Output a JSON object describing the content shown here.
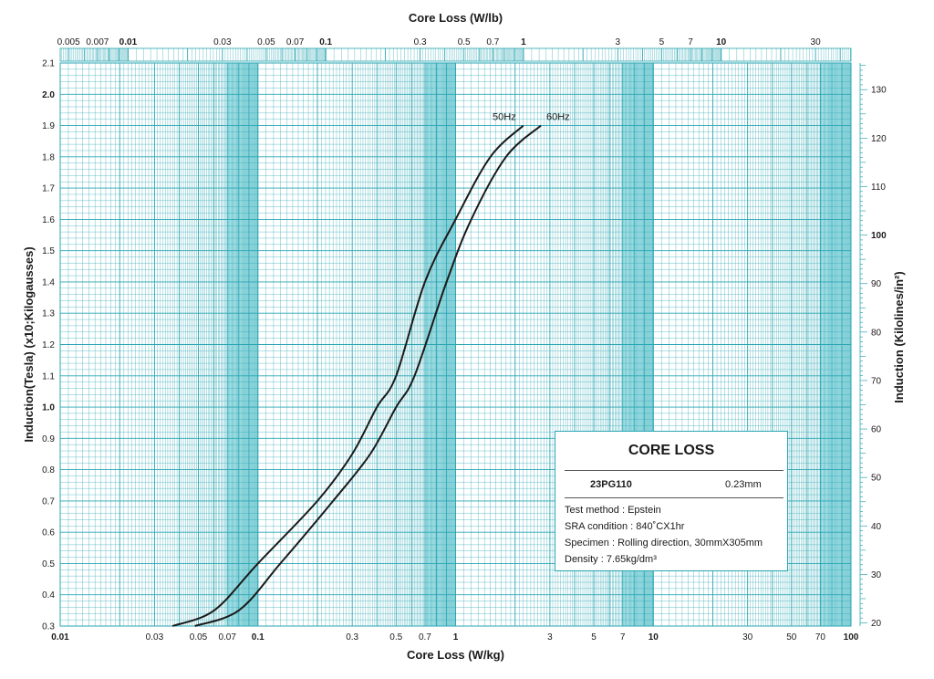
{
  "chart_data": {
    "type": "line",
    "title": "",
    "xlabel_bottom": "Core Loss (W/kg)",
    "xlabel_top": "Core Loss (W/lb)",
    "ylabel_left": "Induction(Tesla) (x10;Kilogausses)",
    "ylabel_right": "Induction (Kilolines/in²)",
    "x_scale": "log",
    "xlim": [
      0.01,
      100
    ],
    "ylim": [
      0.3,
      2.1
    ],
    "y2lim_kilolines_per_in2": [
      19.35,
      135.5
    ],
    "grid": true,
    "x_ticks_bottom": [
      {
        "value": 0.01,
        "label": "0.01",
        "bold": true
      },
      {
        "value": 0.03,
        "label": "0.03",
        "bold": false
      },
      {
        "value": 0.05,
        "label": "0.05",
        "bold": false
      },
      {
        "value": 0.07,
        "label": "0.07",
        "bold": false
      },
      {
        "value": 0.1,
        "label": "0.1",
        "bold": true
      },
      {
        "value": 0.3,
        "label": "0.3",
        "bold": false
      },
      {
        "value": 0.5,
        "label": "0.5",
        "bold": false
      },
      {
        "value": 0.7,
        "label": "0.7",
        "bold": false
      },
      {
        "value": 1,
        "label": "1",
        "bold": true
      },
      {
        "value": 3,
        "label": "3",
        "bold": false
      },
      {
        "value": 5,
        "label": "5",
        "bold": false
      },
      {
        "value": 7,
        "label": "7",
        "bold": false
      },
      {
        "value": 10,
        "label": "10",
        "bold": true
      },
      {
        "value": 30,
        "label": "30",
        "bold": false
      },
      {
        "value": 50,
        "label": "50",
        "bold": false
      },
      {
        "value": 70,
        "label": "70",
        "bold": false
      },
      {
        "value": 100,
        "label": "100",
        "bold": true
      }
    ],
    "x_ticks_top": [
      {
        "value": 0.005,
        "label": "0.005",
        "bold": false
      },
      {
        "value": 0.007,
        "label": "0.007",
        "bold": false
      },
      {
        "value": 0.01,
        "label": "0.01",
        "bold": true
      },
      {
        "value": 0.03,
        "label": "0.03",
        "bold": false
      },
      {
        "value": 0.05,
        "label": "0.05",
        "bold": false
      },
      {
        "value": 0.07,
        "label": "0.07",
        "bold": false
      },
      {
        "value": 0.1,
        "label": "0.1",
        "bold": true
      },
      {
        "value": 0.3,
        "label": "0.3",
        "bold": false
      },
      {
        "value": 0.5,
        "label": "0.5",
        "bold": false
      },
      {
        "value": 0.7,
        "label": "0.7",
        "bold": false
      },
      {
        "value": 1,
        "label": "1",
        "bold": true
      },
      {
        "value": 3,
        "label": "3",
        "bold": false
      },
      {
        "value": 5,
        "label": "5",
        "bold": false
      },
      {
        "value": 7,
        "label": "7",
        "bold": false
      },
      {
        "value": 10,
        "label": "10",
        "bold": true
      },
      {
        "value": 30,
        "label": "30",
        "bold": false
      }
    ],
    "y_ticks_left": [
      {
        "value": 0.3,
        "label": "0.3",
        "bold": false
      },
      {
        "value": 0.4,
        "label": "0.4",
        "bold": false
      },
      {
        "value": 0.5,
        "label": "0.5",
        "bold": false
      },
      {
        "value": 0.6,
        "label": "0.6",
        "bold": false
      },
      {
        "value": 0.7,
        "label": "0.7",
        "bold": false
      },
      {
        "value": 0.8,
        "label": "0.8",
        "bold": false
      },
      {
        "value": 0.9,
        "label": "0.9",
        "bold": false
      },
      {
        "value": 1.0,
        "label": "1.0",
        "bold": true
      },
      {
        "value": 1.1,
        "label": "1.1",
        "bold": false
      },
      {
        "value": 1.2,
        "label": "1.2",
        "bold": false
      },
      {
        "value": 1.3,
        "label": "1.3",
        "bold": false
      },
      {
        "value": 1.4,
        "label": "1.4",
        "bold": false
      },
      {
        "value": 1.5,
        "label": "1.5",
        "bold": false
      },
      {
        "value": 1.6,
        "label": "1.6",
        "bold": false
      },
      {
        "value": 1.7,
        "label": "1.7",
        "bold": false
      },
      {
        "value": 1.8,
        "label": "1.8",
        "bold": false
      },
      {
        "value": 1.9,
        "label": "1.9",
        "bold": false
      },
      {
        "value": 2.0,
        "label": "2.0",
        "bold": true
      },
      {
        "value": 2.1,
        "label": "2.1",
        "bold": false
      }
    ],
    "y_ticks_right": [
      {
        "value": 20,
        "label": "20",
        "bold": false
      },
      {
        "value": 30,
        "label": "30",
        "bold": false
      },
      {
        "value": 40,
        "label": "40",
        "bold": false
      },
      {
        "value": 50,
        "label": "50",
        "bold": false
      },
      {
        "value": 60,
        "label": "60",
        "bold": false
      },
      {
        "value": 70,
        "label": "70",
        "bold": false
      },
      {
        "value": 80,
        "label": "80",
        "bold": false
      },
      {
        "value": 90,
        "label": "90",
        "bold": false
      },
      {
        "value": 100,
        "label": "100",
        "bold": true
      },
      {
        "value": 110,
        "label": "110",
        "bold": false
      },
      {
        "value": 120,
        "label": "120",
        "bold": false
      },
      {
        "value": 130,
        "label": "130",
        "bold": false
      }
    ],
    "series": [
      {
        "name": "50Hz",
        "points": [
          [
            0.037,
            0.3
          ],
          [
            0.06,
            0.35
          ],
          [
            0.1,
            0.5
          ],
          [
            0.2,
            0.7
          ],
          [
            0.3,
            0.85
          ],
          [
            0.4,
            1.0
          ],
          [
            0.5,
            1.1
          ],
          [
            0.7,
            1.4
          ],
          [
            1.0,
            1.6
          ],
          [
            1.5,
            1.8
          ],
          [
            2.2,
            1.9
          ]
        ]
      },
      {
        "name": "60Hz",
        "points": [
          [
            0.048,
            0.3
          ],
          [
            0.08,
            0.35
          ],
          [
            0.13,
            0.5
          ],
          [
            0.24,
            0.7
          ],
          [
            0.37,
            0.85
          ],
          [
            0.5,
            1.0
          ],
          [
            0.62,
            1.1
          ],
          [
            0.9,
            1.4
          ],
          [
            1.2,
            1.6
          ],
          [
            1.8,
            1.8
          ],
          [
            2.7,
            1.9
          ]
        ]
      }
    ],
    "colors": {
      "grid": "#2aa6b3",
      "grid_band": "#7fd6df",
      "curve": "#1a1a1a",
      "background": "#ffffff"
    }
  },
  "legend": {
    "title": "CORE LOSS",
    "grade": "23PG110",
    "thickness": "0.23mm",
    "lines": [
      "Test method : Epstein",
      "SRA condition : 840˚CX1hr",
      "Specimen : Rolling direction, 30mmX305mm",
      "Density : 7.65kg/dm³"
    ]
  }
}
